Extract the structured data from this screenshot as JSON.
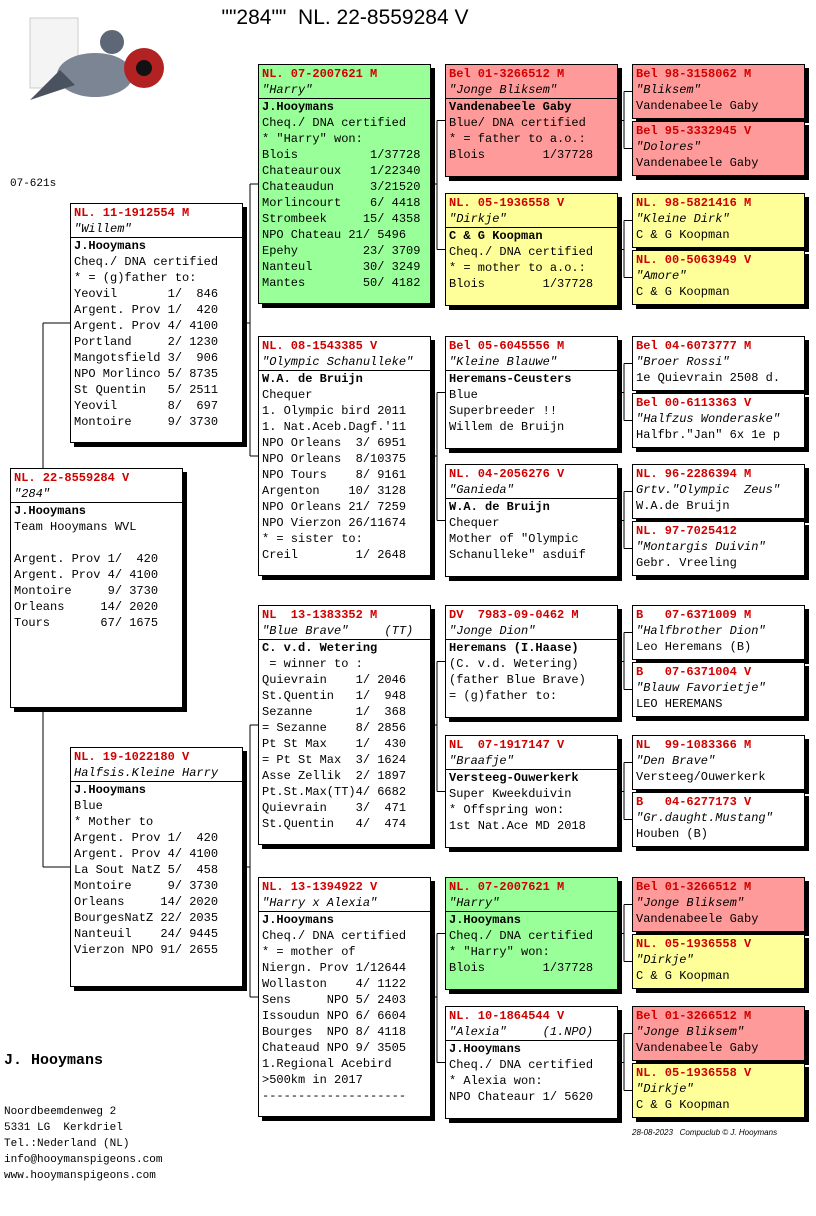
{
  "header": {
    "title": "\"\"284\"\"  NL. 22-8559284 V",
    "code": "07-621s"
  },
  "boxes": [
    {
      "ring": "NL. 22-8559284 V",
      "name": "\"284\"",
      "lines": [
        "J.Hooymans",
        "Team Hooymans WVL",
        "Argent. Prov 1/  420",
        "Argent. Prov 4/ 4100",
        "Montoire     9/ 3730",
        "Orleans     14/ 2020",
        "Tours       67/ 1675"
      ]
    },
    {
      "ring": "NL. 11-1912554 M",
      "name": "\"Willem\"",
      "lines": [
        "J.Hooymans",
        "Cheq./ DNA certified",
        "* = (g)father to:",
        "Yeovil       1/  846",
        "Argent. Prov 1/  420",
        "Argent. Prov 4/ 4100",
        "Portland     2/ 1230",
        "Mangotsfield 3/  906",
        "NPO Morlinco 5/ 8735",
        "St Quentin   5/ 2511",
        "Yeovil       8/  697",
        "Montoire     9/ 3730"
      ]
    },
    {
      "ring": "NL. 19-1022180 V",
      "name": "Halfsis.Kleine Harry",
      "lines": [
        "J.Hooymans",
        "Blue",
        "* Mother to",
        "Argent. Prov 1/  420",
        "Argent. Prov 4/ 4100",
        "La Sout NatZ 5/  458",
        "Montoire     9/ 3730",
        "Orleans     14/ 2020",
        "BourgesNatZ 22/ 2035",
        "Nanteuil    24/ 9445",
        "Vierzon NPO 91/ 2655"
      ]
    },
    {
      "ring": "NL. 07-2007621 M",
      "name": "\"Harry\"",
      "lines": [
        "J.Hooymans",
        "Cheq./ DNA certified",
        "* \"Harry\" won:",
        "Blois          1/37728",
        "Chateauroux    1/22340",
        "Chateaudun     3/21520",
        "Morlincourt    6/ 4418",
        "Strombeek     15/ 4358",
        "NPO Chateau 21/ 5496",
        "Epehy         23/ 3709",
        "Nanteul       30/ 3249",
        "Mantes        50/ 4182"
      ]
    },
    {
      "ring": "NL. 08-1543385 V",
      "name": "\"Olympic Schanulleke\"",
      "lines": [
        "W.A. de Bruijn",
        "Chequer",
        "1. Olympic bird 2011",
        "1. Nat.Aceb.Dagf.'11",
        "NPO Orleans  3/ 6951",
        "NPO Orleans  8/10375",
        "NPO Tours    8/ 9161",
        "Argenton    10/ 3128",
        "NPO Orleans 21/ 7259",
        "NPO Vierzon 26/11674",
        "* = sister to:",
        "Creil        1/ 2648"
      ]
    },
    {
      "ring": "NL  13-1383352 M",
      "name": "\"Blue Brave\"     (TT)",
      "lines": [
        "C. v.d. Wetering",
        " = winner to :",
        "Quievrain    1/ 2046",
        "St.Quentin   1/  948",
        "Sezanne      1/  368",
        "= Sezanne    8/ 2856",
        "Pt St Max    1/  430",
        "= Pt St Max  3/ 1624",
        "Asse Zellik  2/ 1897",
        "Pt.St.Max(TT)4/ 6682",
        "Quievrain    3/  471",
        "St.Quentin   4/  474"
      ]
    },
    {
      "ring": "NL. 13-1394922 V",
      "name": "\"Harry x Alexia\"",
      "lines": [
        "J.Hooymans",
        "Cheq./ DNA certified",
        "* = mother of",
        "Niergn. Prov 1/12644",
        "Wollaston    4/ 1122",
        "Sens     NPO 5/ 2403",
        "Issoudun NPO 6/ 6604",
        "Bourges  NPO 8/ 4118",
        "Chateaud NPO 9/ 3505",
        "1.Regional Acebird",
        ">500km in 2017",
        "--------------------"
      ]
    },
    {
      "ring": "Bel 01-3266512 M",
      "name": "\"Jonge Bliksem\"",
      "lines": [
        "Vandenabeele Gaby",
        "Blue/ DNA certified",
        "* = father to a.o.:",
        "Blois        1/37728"
      ]
    },
    {
      "ring": "NL. 05-1936558 V",
      "name": "\"Dirkje\"",
      "lines": [
        "C & G Koopman",
        "Cheq./ DNA certified",
        "* = mother to a.o.:",
        "Blois        1/37728"
      ]
    },
    {
      "ring": "Bel 05-6045556 M",
      "name": "\"Kleine Blauwe\"",
      "lines": [
        "Heremans-Ceusters",
        "Blue",
        "Superbreeder !!",
        "Willem de Bruijn"
      ]
    },
    {
      "ring": "NL. 04-2056276 V",
      "name": "\"Ganieda\"",
      "lines": [
        "W.A. de Bruijn",
        "Chequer",
        "Mother of \"Olympic",
        "Schanulleke\" asduif"
      ]
    },
    {
      "ring": "DV  7983-09-0462 M",
      "name": "\"Jonge Dion\"",
      "lines": [
        "Heremans (I.Haase)",
        "(C. v.d. Wetering)",
        "(father Blue Brave)",
        "= (g)father to:"
      ]
    },
    {
      "ring": "NL  07-1917147 V",
      "name": "\"Braafje\"",
      "lines": [
        "Versteeg-Ouwerkerk",
        "Super Kweekduivin",
        "* Offspring won:",
        "1st Nat.Ace MD 2018"
      ]
    },
    {
      "ring": "NL. 07-2007621 M",
      "name": "\"Harry\"",
      "lines": [
        "J.Hooymans",
        "Cheq./ DNA certified",
        "* \"Harry\" won:",
        "Blois        1/37728"
      ]
    },
    {
      "ring": "NL. 10-1864544 V",
      "name": "\"Alexia\"     (1.NPO)",
      "lines": [
        "J.Hooymans",
        "Cheq./ DNA certified",
        "* Alexia won:",
        "NPO Chateaur 1/ 5620"
      ]
    },
    {
      "ring": "Bel 98-3158062 M",
      "name": "\"Bliksem\"",
      "lines": [
        "Vandenabeele Gaby"
      ]
    },
    {
      "ring": "Bel 95-3332945 V",
      "name": "\"Dolores\"",
      "lines": [
        "Vandenabeele Gaby"
      ]
    },
    {
      "ring": "NL. 98-5821416 M",
      "name": "\"Kleine Dirk\"",
      "lines": [
        "C & G Koopman"
      ]
    },
    {
      "ring": "NL. 00-5063949 V",
      "name": "\"Amore\"",
      "lines": [
        "C & G Koopman"
      ]
    },
    {
      "ring": "Bel 04-6073777 M",
      "name": "\"Broer Rossi\"",
      "lines": [
        "1e Quievrain 2508 d."
      ]
    },
    {
      "ring": "Bel 00-6113363 V",
      "name": "\"Halfzus Wonderaske\"",
      "lines": [
        "Halfbr.\"Jan\" 6x 1e p"
      ]
    },
    {
      "ring": "NL. 96-2286394 M",
      "name": "Grtv.\"Olympic  Zeus\"",
      "lines": [
        "W.A.de Bruijn"
      ]
    },
    {
      "ring": "NL. 97-7025412",
      "name": "\"Montargis Duivin\"",
      "lines": [
        "Gebr. Vreeling"
      ]
    },
    {
      "ring": "B   07-6371009 M",
      "name": "\"Halfbrother Dion\"",
      "lines": [
        "Leo Heremans (B)"
      ]
    },
    {
      "ring": "B   07-6371004 V",
      "name": "\"Blauw Favorietje\"",
      "lines": [
        "LEO HEREMANS"
      ]
    },
    {
      "ring": "NL  99-1083366 M",
      "name": "\"Den Brave\"",
      "lines": [
        "Versteeg/Ouwerkerk"
      ]
    },
    {
      "ring": "B   04-6277173 V",
      "name": "\"Gr.daught.Mustang\"",
      "lines": [
        "Houben (B)"
      ]
    },
    {
      "ring": "Bel 01-3266512 M",
      "name": "\"Jonge Bliksem\"",
      "lines": [
        "Vandenabeele Gaby"
      ]
    },
    {
      "ring": "NL. 05-1936558 V",
      "name": "\"Dirkje\"",
      "lines": [
        "C & G Koopman"
      ]
    },
    {
      "ring": "Bel 01-3266512 M",
      "name": "\"Jonge Bliksem\"",
      "lines": [
        "Vandenabeele Gaby"
      ]
    },
    {
      "ring": "NL. 05-1936558 V",
      "name": "\"Dirkje\"",
      "lines": [
        "C & G Koopman"
      ]
    }
  ],
  "owner": {
    "name": "J. Hooymans",
    "lines": [
      "Noordbeemdenweg 2",
      "5331 LG  Kerkdriel",
      "Tel.:Nederland (NL)",
      "info@hooymanspigeons.com",
      "www.hooymanspigeons.com"
    ]
  },
  "footer": {
    "date": "28-08-2023",
    "credit": "Compuclub © J. Hooymans"
  }
}
